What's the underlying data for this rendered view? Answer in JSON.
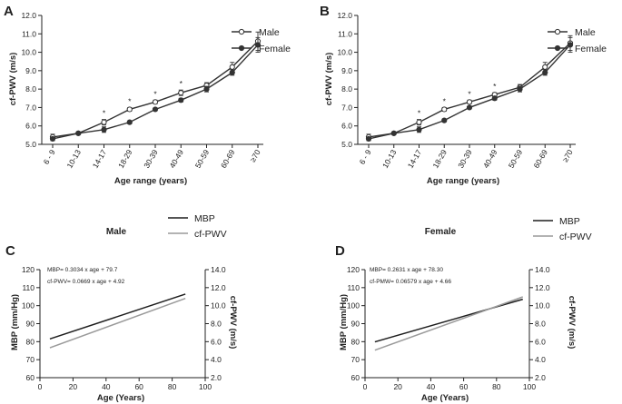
{
  "chart_data": [
    {
      "panel": "A",
      "type": "line",
      "ylabel": "cf-PWV (m/s)",
      "xlabel": "Age range (years)",
      "ylim": [
        5.0,
        12.0
      ],
      "yticks": [
        "5.0",
        "6.0",
        "7.0",
        "8.0",
        "9.0",
        "10.0",
        "11.0",
        "12.0"
      ],
      "categories": [
        "6 - 9",
        "10-13",
        "14-17",
        "18-29",
        "30-39",
        "40-49",
        "50-59",
        "60-69",
        "≥70"
      ],
      "series": [
        {
          "name": "Male",
          "marker": "open",
          "values": [
            5.4,
            5.6,
            6.2,
            6.9,
            7.3,
            7.8,
            8.2,
            9.2,
            10.6
          ],
          "err": [
            0.15,
            0.05,
            0.15,
            0.1,
            0.1,
            0.15,
            0.15,
            0.25,
            0.5
          ]
        },
        {
          "name": "Female",
          "marker": "filled",
          "values": [
            5.3,
            5.6,
            5.8,
            6.2,
            6.9,
            7.4,
            8.0,
            8.9,
            10.4
          ],
          "err": [
            0.1,
            0.05,
            0.15,
            0.08,
            0.08,
            0.1,
            0.15,
            0.15,
            0.4
          ]
        }
      ],
      "significance": [
        "",
        "",
        "*",
        "*",
        "*",
        "*",
        "",
        "",
        ""
      ],
      "legend_position": "top-right"
    },
    {
      "panel": "B",
      "type": "line",
      "ylabel": "cf-PWV (m/s)",
      "xlabel": "Age range (years)",
      "ylim": [
        5.0,
        12.0
      ],
      "yticks": [
        "5.0",
        "6.0",
        "7.0",
        "8.0",
        "9.0",
        "10.0",
        "11.0",
        "12.0"
      ],
      "categories": [
        "6 - 9",
        "10-13",
        "14-17",
        "18-29",
        "30-39",
        "40-49",
        "50-59",
        "60-69",
        "≥70"
      ],
      "series": [
        {
          "name": "Male",
          "marker": "open",
          "values": [
            5.4,
            5.6,
            6.2,
            6.9,
            7.3,
            7.7,
            8.1,
            9.2,
            10.5
          ],
          "err": [
            0.15,
            0.05,
            0.15,
            0.1,
            0.1,
            0.1,
            0.15,
            0.25,
            0.4
          ]
        },
        {
          "name": "Female",
          "marker": "filled",
          "values": [
            5.3,
            5.6,
            5.8,
            6.3,
            7.0,
            7.5,
            8.0,
            8.9,
            10.4
          ],
          "err": [
            0.1,
            0.05,
            0.15,
            0.08,
            0.08,
            0.1,
            0.15,
            0.15,
            0.4
          ]
        }
      ],
      "significance": [
        "",
        "",
        "*",
        "*",
        "*",
        "*",
        "",
        "",
        ""
      ],
      "legend_position": "top-right"
    },
    {
      "panel": "C",
      "type": "line",
      "subtitle": "Male",
      "xlabel": "Age (Years)",
      "ylabel": "MBP (mm/Hg)",
      "ylabel_right": "cf-PWV (m/s)",
      "xlim": [
        0,
        100
      ],
      "xticks": [
        "0",
        "20",
        "40",
        "60",
        "80",
        "100"
      ],
      "ylim": [
        60,
        120
      ],
      "yticks": [
        "60",
        "70",
        "80",
        "90",
        "100",
        "110",
        "120"
      ],
      "ylim_right": [
        2.0,
        14.0
      ],
      "yticks_right": [
        "2.0",
        "4.0",
        "6.0",
        "8.0",
        "10.0",
        "12.0",
        "14.0"
      ],
      "legend": [
        "MBP",
        "cf-PWV"
      ],
      "equations": [
        "MBP= 0.3034 x age + 79.7",
        "cf-PWV= 0.0669 x age + 4.92"
      ],
      "series": [
        {
          "name": "MBP",
          "axis": "left",
          "slope": 0.3034,
          "intercept": 79.7,
          "x": [
            6,
            88
          ],
          "color": "#1e1e1e"
        },
        {
          "name": "cf-PWV",
          "axis": "right",
          "slope": 0.0669,
          "intercept": 4.92,
          "x": [
            6,
            88
          ],
          "color": "#9a9a9a"
        }
      ]
    },
    {
      "panel": "D",
      "type": "line",
      "subtitle": "Female",
      "xlabel": "Age (Years)",
      "ylabel": "MBP (mm/Hg)",
      "ylabel_right": "cf-PWV (m/s)",
      "xlim": [
        0,
        100
      ],
      "xticks": [
        "0",
        "20",
        "40",
        "60",
        "80",
        "100"
      ],
      "ylim": [
        60,
        120
      ],
      "yticks": [
        "60",
        "70",
        "80",
        "90",
        "100",
        "110",
        "120"
      ],
      "ylim_right": [
        2.0,
        14.0
      ],
      "yticks_right": [
        "2.0",
        "4.0",
        "6.0",
        "8.0",
        "10.0",
        "12.0",
        "14.0"
      ],
      "legend": [
        "MBP",
        "cf-PWV"
      ],
      "equations": [
        "MBP= 0.2631 x age + 78.30",
        "cf-PMW= 0.06579 x age + 4.66"
      ],
      "series": [
        {
          "name": "MBP",
          "axis": "left",
          "slope": 0.2631,
          "intercept": 78.3,
          "x": [
            6,
            96
          ],
          "color": "#1e1e1e"
        },
        {
          "name": "cf-PWV",
          "axis": "right",
          "slope": 0.06579,
          "intercept": 4.66,
          "x": [
            6,
            96
          ],
          "color": "#9a9a9a"
        }
      ]
    }
  ]
}
